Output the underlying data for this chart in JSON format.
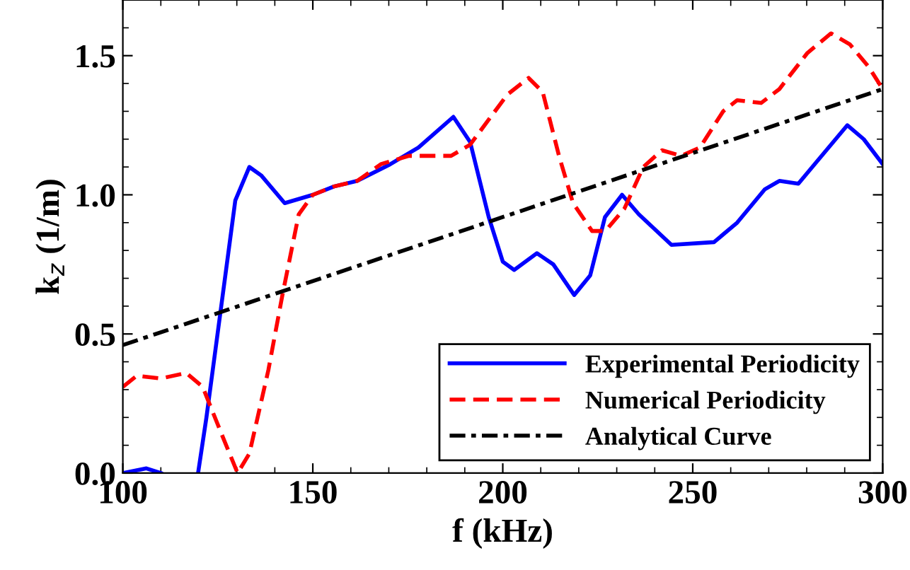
{
  "chart_data": {
    "type": "line",
    "xlabel": "f (kHz)",
    "ylabel": "k$_{z}$ (1/m)",
    "xlim": [
      100,
      300
    ],
    "xticks": [
      100,
      150,
      200,
      250,
      300
    ],
    "ylim": [
      0,
      1.7
    ],
    "yticks": [
      {
        "value": 0,
        "label": "0.0"
      },
      0.5,
      {
        "value": 1,
        "label": "1.0"
      },
      1.5
    ],
    "grid": false,
    "legend": "bottom right",
    "marker": "none",
    "series": [
      {
        "name": "Experimental Periodicity",
        "color": "#0000ff",
        "line_style": "solid",
        "x": [
          100,
          106.2,
          110,
          113,
          119.8,
          122,
          126,
          129.6,
          133.3,
          136.4,
          142.6,
          150,
          155.6,
          161.7,
          170.4,
          177.8,
          187,
          191.4,
          196.3,
          200,
          203,
          209,
          213.3,
          218.8,
          223,
          226.9,
          231.4,
          235.8,
          244.4,
          255.6,
          261.7,
          269,
          272.8,
          277.8,
          282.7,
          290.7,
          295,
          300
        ],
        "values": [
          0.0,
          0.017,
          0.0,
          null,
          0.0,
          0.2,
          0.61,
          0.98,
          1.1,
          1.07,
          0.97,
          1.0,
          1.03,
          1.05,
          1.11,
          1.17,
          1.28,
          1.19,
          0.92,
          0.76,
          0.73,
          0.79,
          0.75,
          0.64,
          0.71,
          0.92,
          1.0,
          0.93,
          0.82,
          0.83,
          0.9,
          1.02,
          1.05,
          1.04,
          1.12,
          1.25,
          1.2,
          1.11
        ]
      },
      {
        "name": "Numerical Periodicity",
        "color": "#ff0000",
        "line_style": "dashed",
        "x": [
          100,
          103.7,
          110,
          116.7,
          121,
          126,
          130.2,
          133.3,
          138.3,
          142,
          146.3,
          150,
          155.6,
          161.7,
          167.9,
          175.3,
          186.4,
          191.4,
          196.3,
          201.2,
          206.8,
          210.5,
          214.8,
          218.5,
          223.5,
          227,
          232,
          237,
          241.9,
          246.9,
          251.9,
          258,
          261.7,
          268,
          272.8,
          280.2,
          286.4,
          291.4,
          296.3,
          300
        ],
        "values": [
          0.31,
          0.35,
          0.34,
          0.36,
          0.31,
          0.14,
          0.0,
          0.07,
          0.37,
          0.64,
          0.93,
          1.0,
          1.03,
          1.05,
          1.11,
          1.14,
          1.14,
          1.18,
          1.27,
          1.36,
          1.42,
          1.37,
          1.14,
          0.97,
          0.87,
          0.87,
          0.95,
          1.1,
          1.16,
          1.14,
          1.17,
          1.3,
          1.34,
          1.33,
          1.38,
          1.51,
          1.58,
          1.54,
          1.46,
          1.38
        ]
      },
      {
        "name": "Analytical Curve",
        "color": "#000000",
        "line_style": "dashdot",
        "x": [
          100,
          300
        ],
        "values": [
          0.46,
          1.38
        ]
      }
    ]
  }
}
